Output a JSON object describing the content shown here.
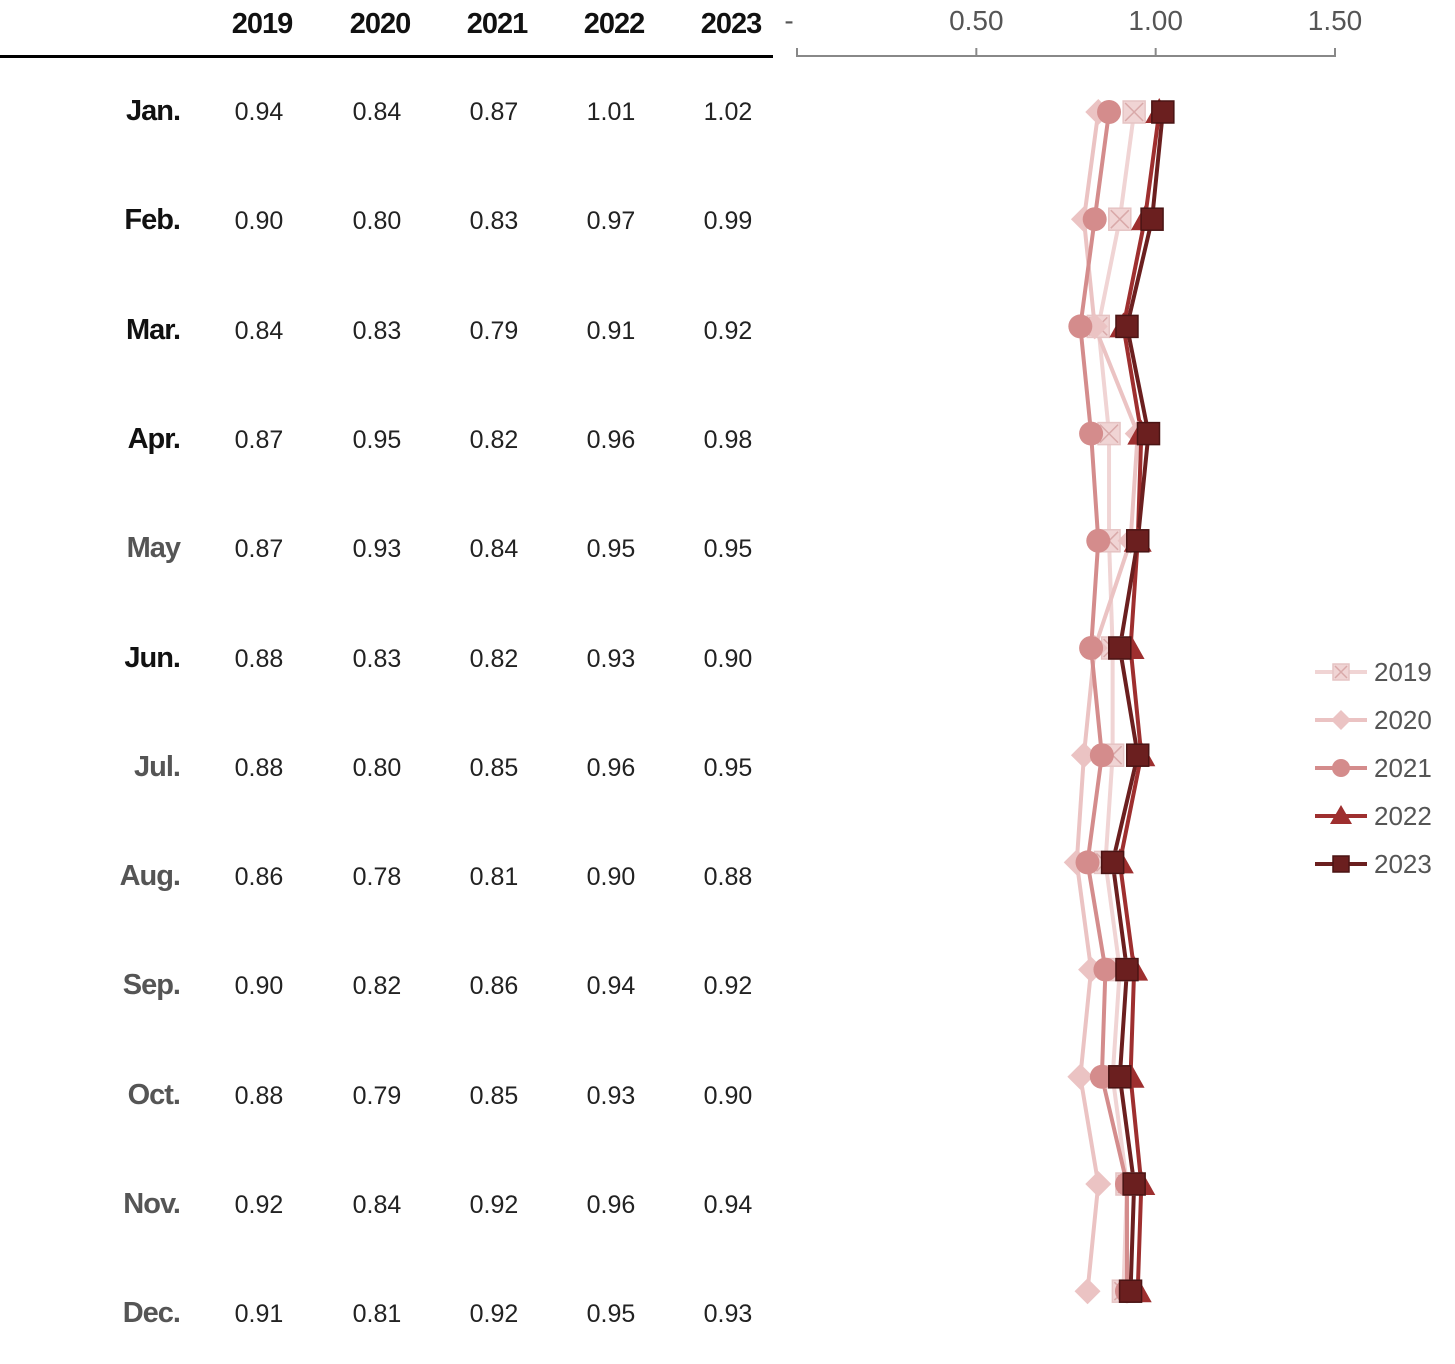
{
  "table": {
    "columns": [
      "2019",
      "2020",
      "2021",
      "2022",
      "2023"
    ],
    "rows": [
      {
        "month": "Jan.",
        "color": "#111111",
        "values": [
          "0.94",
          "0.84",
          "0.87",
          "1.01",
          "1.02"
        ]
      },
      {
        "month": "Feb.",
        "color": "#111111",
        "values": [
          "0.90",
          "0.80",
          "0.83",
          "0.97",
          "0.99"
        ]
      },
      {
        "month": "Mar.",
        "color": "#111111",
        "values": [
          "0.84",
          "0.83",
          "0.79",
          "0.91",
          "0.92"
        ]
      },
      {
        "month": "Apr.",
        "color": "#111111",
        "values": [
          "0.87",
          "0.95",
          "0.82",
          "0.96",
          "0.98"
        ]
      },
      {
        "month": "May",
        "color": "#555555",
        "values": [
          "0.87",
          "0.93",
          "0.84",
          "0.95",
          "0.95"
        ]
      },
      {
        "month": "Jun.",
        "color": "#111111",
        "values": [
          "0.88",
          "0.83",
          "0.82",
          "0.93",
          "0.90"
        ]
      },
      {
        "month": "Jul.",
        "color": "#555555",
        "values": [
          "0.88",
          "0.80",
          "0.85",
          "0.96",
          "0.95"
        ]
      },
      {
        "month": "Aug.",
        "color": "#555555",
        "values": [
          "0.86",
          "0.78",
          "0.81",
          "0.90",
          "0.88"
        ]
      },
      {
        "month": "Sep.",
        "color": "#555555",
        "values": [
          "0.90",
          "0.82",
          "0.86",
          "0.94",
          "0.92"
        ]
      },
      {
        "month": "Oct.",
        "color": "#555555",
        "values": [
          "0.88",
          "0.79",
          "0.85",
          "0.93",
          "0.90"
        ]
      },
      {
        "month": "Nov.",
        "color": "#555555",
        "values": [
          "0.92",
          "0.84",
          "0.92",
          "0.96",
          "0.94"
        ]
      },
      {
        "month": "Dec.",
        "color": "#555555",
        "values": [
          "0.91",
          "0.81",
          "0.92",
          "0.95",
          "0.93"
        ]
      }
    ]
  },
  "chart_data": {
    "type": "line",
    "orientation": "vertical-category",
    "categories": [
      "Jan.",
      "Feb.",
      "Mar.",
      "Apr.",
      "May",
      "Jun.",
      "Jul.",
      "Aug.",
      "Sep.",
      "Oct.",
      "Nov.",
      "Dec."
    ],
    "xlim": [
      0,
      1.5
    ],
    "x_ticks": [
      0,
      0.5,
      1.0,
      1.5
    ],
    "x_tick_labels": [
      "-",
      "0.50",
      "1.00",
      "1.50"
    ],
    "axis_position": "top",
    "grid": false,
    "legend_position": "right",
    "series": [
      {
        "name": "2019",
        "color": "#f0d4d4",
        "marker": "square-x",
        "values": [
          0.94,
          0.9,
          0.84,
          0.87,
          0.87,
          0.88,
          0.88,
          0.86,
          0.9,
          0.88,
          0.92,
          0.91
        ]
      },
      {
        "name": "2020",
        "color": "#ebc3c3",
        "marker": "diamond",
        "values": [
          0.84,
          0.8,
          0.83,
          0.95,
          0.93,
          0.83,
          0.8,
          0.78,
          0.82,
          0.79,
          0.84,
          0.81
        ]
      },
      {
        "name": "2021",
        "color": "#d48c8c",
        "marker": "circle",
        "values": [
          0.87,
          0.83,
          0.79,
          0.82,
          0.84,
          0.82,
          0.85,
          0.81,
          0.86,
          0.85,
          0.92,
          0.92
        ]
      },
      {
        "name": "2022",
        "color": "#9e2f2f",
        "marker": "triangle",
        "values": [
          1.01,
          0.97,
          0.91,
          0.96,
          0.95,
          0.93,
          0.96,
          0.9,
          0.94,
          0.93,
          0.96,
          0.95
        ]
      },
      {
        "name": "2023",
        "color": "#6b1f1f",
        "marker": "square",
        "values": [
          1.02,
          0.99,
          0.92,
          0.98,
          0.95,
          0.9,
          0.95,
          0.88,
          0.92,
          0.9,
          0.94,
          0.93
        ]
      }
    ]
  }
}
